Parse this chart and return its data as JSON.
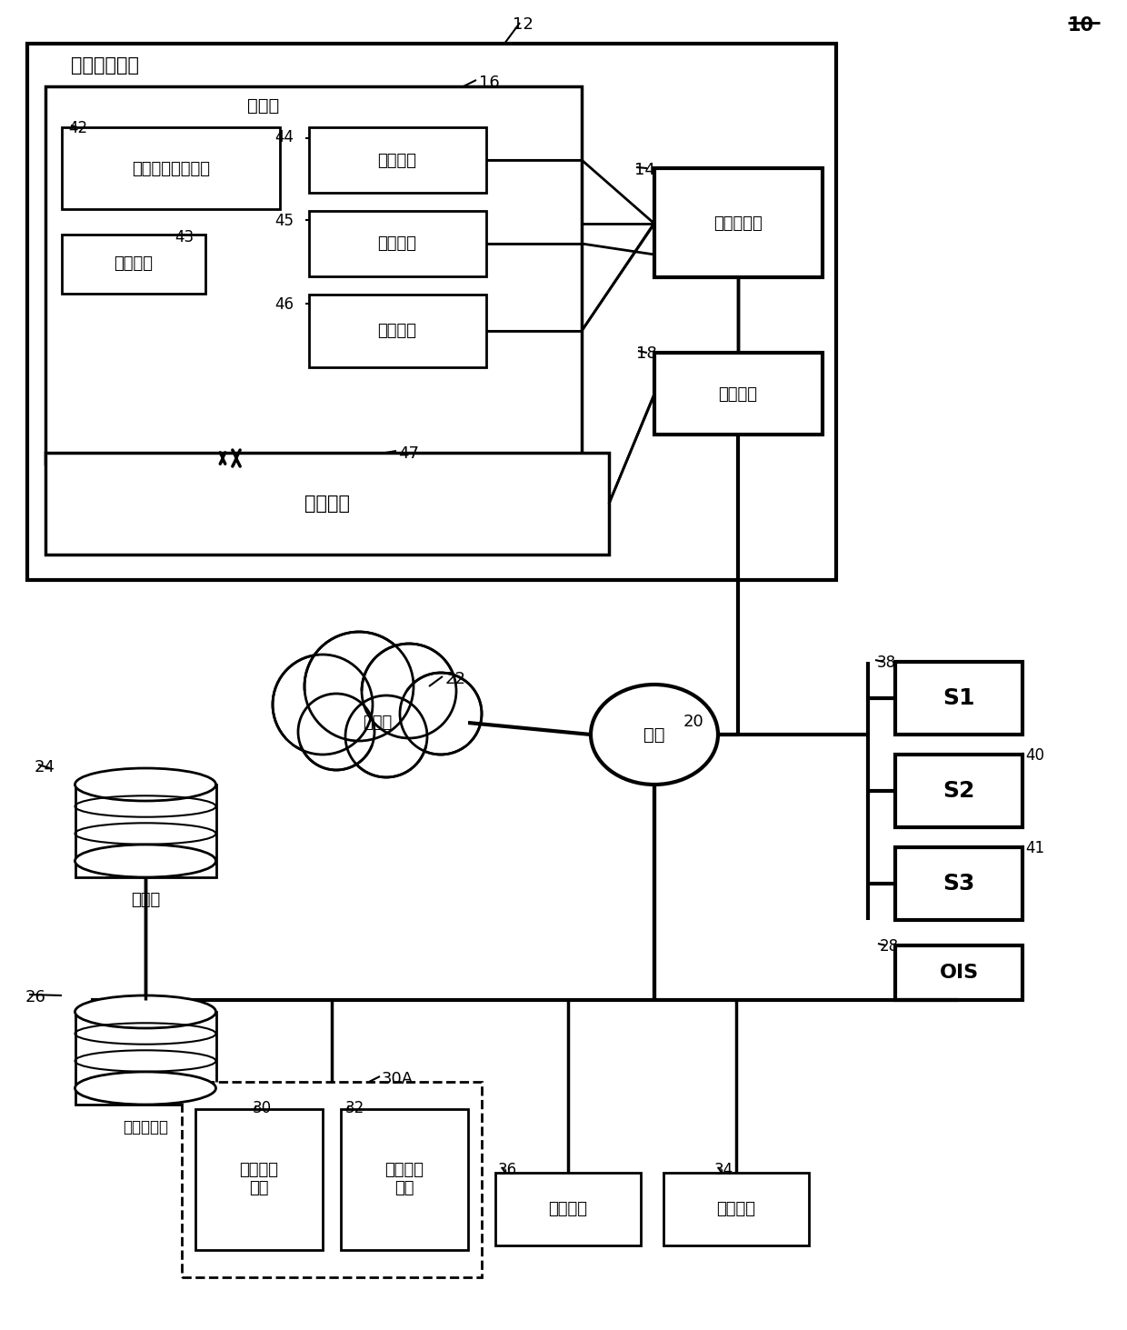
{
  "bg_color": "#ffffff",
  "text_main_box": "图像处理装置",
  "text_storage": "存储器",
  "text_radiotherapy_plan": "放射疗法治疗计划",
  "text_os": "操作系统",
  "text_software": "软件程序",
  "text_patient_data": "患者数据",
  "text_medical_image": "医学图像",
  "text_image_processor": "图像处理器",
  "text_neural_network": "神经网络",
  "text_comm_interface": "通信接口",
  "text_internet": "互联网",
  "text_network": "网络",
  "text_database": "数据库",
  "text_hospital_db": "医院数据库",
  "text_radiation_device": "放射疗法\n装置",
  "text_image_capture": "图像获取\n装置",
  "text_user_interface": "用户接口",
  "text_display": "显示装置",
  "text_ois": "OIS",
  "text_s1": "S1",
  "text_s2": "S2",
  "text_s3": "S3",
  "label_10": "10",
  "label_12": "12",
  "label_14": "14",
  "label_16": "16",
  "label_18": "18",
  "label_20": "20",
  "label_22": "22",
  "label_24": "24",
  "label_26": "26",
  "label_28": "28",
  "label_30": "30",
  "label_30A": "30A",
  "label_32": "32",
  "label_34": "34",
  "label_36": "36",
  "label_38": "38",
  "label_40": "40",
  "label_41": "41",
  "label_42": "42",
  "label_43": "43",
  "label_44": "44",
  "label_45": "45",
  "label_46": "46",
  "label_47": "47"
}
